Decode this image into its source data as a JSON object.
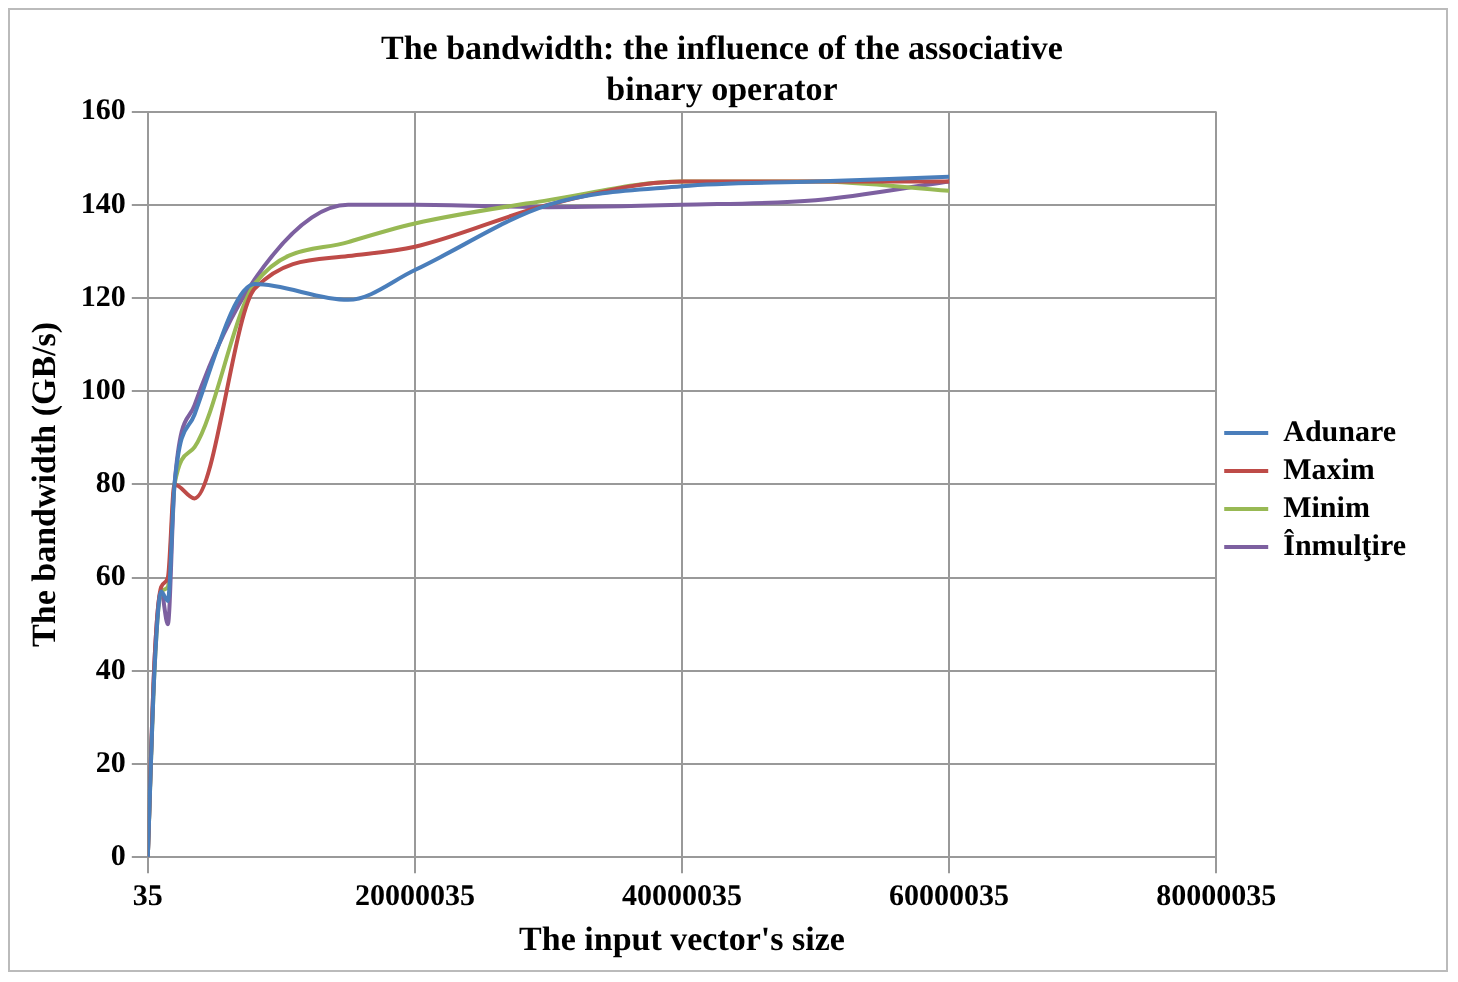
{
  "chart_data": {
    "type": "line",
    "title": [
      "The bandwidth: the influence of the associative",
      "binary operator"
    ],
    "xlabel": "The input vector's size",
    "ylabel": "The bandwidth (GB/s)",
    "x": [
      35,
      500035,
      1000035,
      1500035,
      2000035,
      3500035,
      8000035,
      15000035,
      20000035,
      30000035,
      40000035,
      50000035,
      60000035
    ],
    "series": [
      {
        "name": "Adunare",
        "color": "#4a7ebb",
        "values": [
          0,
          40,
          57,
          55,
          80,
          95,
          123,
          119.6,
          126,
          140,
          144,
          145,
          146
        ]
      },
      {
        "name": "Maxim",
        "color": "#be4b48",
        "values": [
          0,
          42,
          58,
          60,
          80,
          77,
          122,
          129,
          131,
          140,
          145,
          145,
          145
        ]
      },
      {
        "name": "Minim",
        "color": "#98b954",
        "values": [
          0,
          40,
          57,
          58,
          80,
          88,
          123,
          132,
          136,
          141,
          145,
          145,
          143
        ]
      },
      {
        "name": "Înmulţire",
        "color": "#7d60a0",
        "values": [
          0,
          42,
          57,
          50,
          80,
          97,
          124,
          140,
          140,
          139.5,
          140,
          141,
          145
        ]
      }
    ],
    "xlim": [
      35,
      80000035
    ],
    "xticks": [
      35,
      20000035,
      40000035,
      60000035,
      80000035
    ],
    "ylim": [
      0,
      160
    ],
    "yticks": [
      0,
      20,
      40,
      60,
      80,
      100,
      120,
      140,
      160
    ],
    "grid": true,
    "legend": "right",
    "marker": "none",
    "line_style": "solid"
  }
}
